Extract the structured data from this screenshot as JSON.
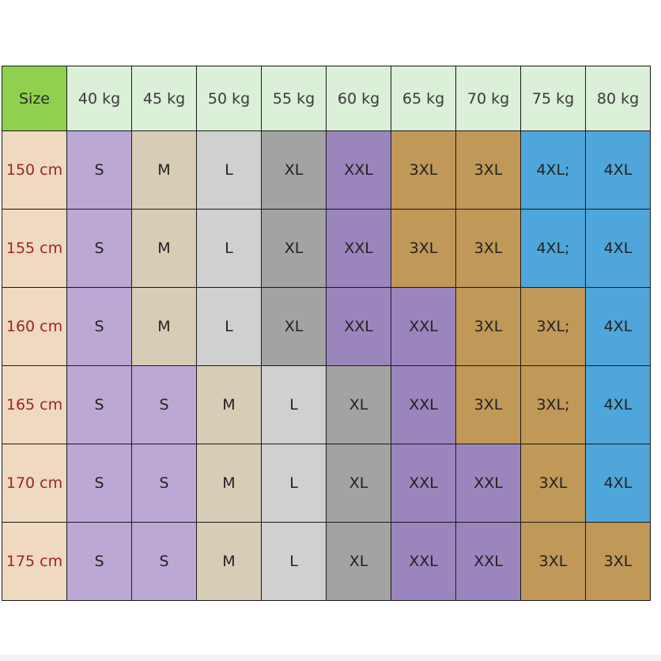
{
  "table": {
    "corner_label": "Size",
    "weights": [
      "40 kg",
      "45 kg",
      "50 kg",
      "55 kg",
      "60 kg",
      "65 kg",
      "70 kg",
      "75 kg",
      "80 kg"
    ],
    "rows": [
      {
        "height": "150 cm",
        "sizes": [
          "S",
          "M",
          "L",
          "XL",
          "XXL",
          "3XL",
          "3XL",
          "4XL;",
          "4XL"
        ]
      },
      {
        "height": "155 cm",
        "sizes": [
          "S",
          "M",
          "L",
          "XL",
          "XXL",
          "3XL",
          "3XL",
          "4XL;",
          "4XL"
        ]
      },
      {
        "height": "160 cm",
        "sizes": [
          "S",
          "M",
          "L",
          "XL",
          "XXL",
          "XXL",
          "3XL",
          "3XL;",
          "4XL"
        ]
      },
      {
        "height": "165 cm",
        "sizes": [
          "S",
          "S",
          "M",
          "L",
          "XL",
          "XXL",
          "3XL",
          "3XL;",
          "4XL"
        ]
      },
      {
        "height": "170 cm",
        "sizes": [
          "S",
          "S",
          "M",
          "L",
          "XL",
          "XXL",
          "XXL",
          "3XL",
          "4XL"
        ]
      },
      {
        "height": "175 cm",
        "sizes": [
          "S",
          "S",
          "M",
          "L",
          "XL",
          "XXL",
          "XXL",
          "3XL",
          "3XL"
        ]
      }
    ]
  },
  "colors": {
    "header_bg": "#dcefd9",
    "corner_bg": "#8fd14f",
    "row_label_bg": "#efd9c0",
    "row_label_text": "#9b2626",
    "S": "#bba8d4",
    "M": "#d7ccb6",
    "L": "#d0d0d0",
    "XL": "#a3a3a3",
    "XXL": "#9b85bd",
    "3XL": "#c09858",
    "4XL": "#4fa6db"
  }
}
